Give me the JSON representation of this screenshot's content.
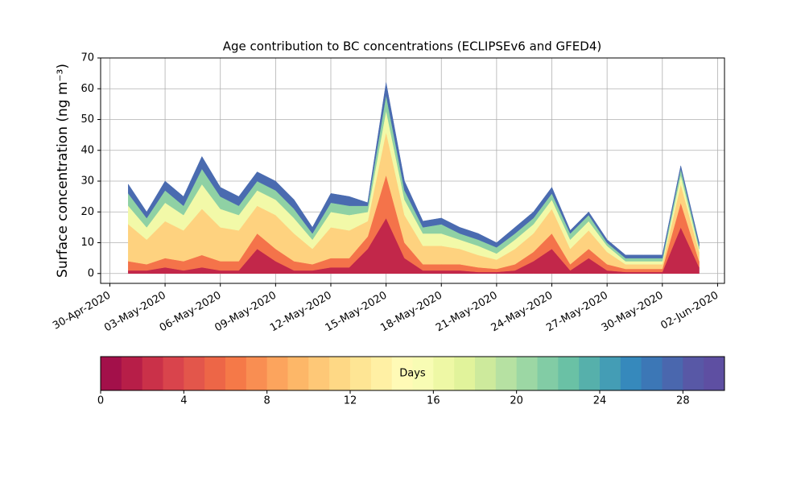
{
  "chart_data": {
    "type": "stacked_area",
    "title": "Age contribution to BC concentrations (ECLIPSEv6 and GFED4)",
    "ylabel": "Surface concentration (ng m⁻³)",
    "x": [
      "2020-05-01",
      "2020-05-02",
      "2020-05-03",
      "2020-05-04",
      "2020-05-05",
      "2020-05-06",
      "2020-05-07",
      "2020-05-08",
      "2020-05-09",
      "2020-05-10",
      "2020-05-11",
      "2020-05-12",
      "2020-05-13",
      "2020-05-14",
      "2020-05-15",
      "2020-05-16",
      "2020-05-17",
      "2020-05-18",
      "2020-05-19",
      "2020-05-20",
      "2020-05-21",
      "2020-05-22",
      "2020-05-23",
      "2020-05-24",
      "2020-05-25",
      "2020-05-26",
      "2020-05-27",
      "2020-05-28",
      "2020-05-29",
      "2020-05-30",
      "2020-05-31",
      "2020-06-01"
    ],
    "series": [
      {
        "color": "#c2274a",
        "values": [
          1,
          1,
          2,
          1,
          2,
          1,
          1,
          8,
          4,
          1,
          1,
          2,
          2,
          8,
          18,
          5,
          1,
          1,
          1,
          0.5,
          0.5,
          1,
          4,
          8,
          1,
          5,
          1,
          0.5,
          0.5,
          0.5,
          15,
          2
        ]
      },
      {
        "color": "#f4734a",
        "values": [
          3,
          2,
          3,
          3,
          4,
          3,
          3,
          5,
          4,
          3,
          2,
          3,
          3,
          4,
          14,
          5,
          2,
          2,
          2,
          1.5,
          1,
          2,
          3,
          5,
          2,
          3,
          2,
          1,
          1,
          1,
          8,
          2
        ]
      },
      {
        "color": "#fed27f",
        "values": [
          12,
          8,
          12,
          10,
          15,
          11,
          10,
          9,
          11,
          9,
          5,
          10,
          9,
          5,
          14,
          9,
          6,
          6,
          5,
          4,
          3,
          5,
          6,
          8,
          5,
          6,
          4,
          1.5,
          1.5,
          1.5,
          6,
          3
        ]
      },
      {
        "color": "#f2f9a8",
        "values": [
          6,
          4,
          6,
          5,
          8,
          6,
          5,
          5,
          5,
          5,
          3,
          5,
          5,
          3,
          7,
          5,
          4,
          4,
          3,
          3,
          2,
          3,
          3,
          3,
          3,
          3,
          2,
          1,
          1,
          1,
          3,
          1
        ]
      },
      {
        "color": "#8fd1a4",
        "values": [
          4,
          3,
          4,
          3,
          5,
          4,
          3,
          3,
          3,
          3,
          2,
          3,
          3,
          2,
          5,
          3,
          2,
          3,
          2,
          2,
          2,
          2,
          2,
          2,
          2,
          2,
          1,
          1,
          1,
          1,
          2,
          1
        ]
      },
      {
        "color": "#4a6bb0",
        "values": [
          3,
          2,
          3,
          3,
          4,
          3,
          3,
          3,
          3,
          3,
          2,
          3,
          3,
          1,
          4,
          3,
          2,
          2,
          2,
          2,
          1.5,
          2,
          2,
          2,
          1,
          1,
          1,
          1,
          1,
          1,
          1,
          1
        ]
      }
    ],
    "xlim": [
      "2020-04-29T12:00",
      "2020-06-02T09:00"
    ],
    "xticks": [
      {
        "value": "2020-04-30",
        "label": "30-Apr-2020"
      },
      {
        "value": "2020-05-03",
        "label": "03-May-2020"
      },
      {
        "value": "2020-05-06",
        "label": "06-May-2020"
      },
      {
        "value": "2020-05-09",
        "label": "09-May-2020"
      },
      {
        "value": "2020-05-12",
        "label": "12-May-2020"
      },
      {
        "value": "2020-05-15",
        "label": "15-May-2020"
      },
      {
        "value": "2020-05-18",
        "label": "18-May-2020"
      },
      {
        "value": "2020-05-21",
        "label": "21-May-2020"
      },
      {
        "value": "2020-05-24",
        "label": "24-May-2020"
      },
      {
        "value": "2020-05-27",
        "label": "27-May-2020"
      },
      {
        "value": "2020-05-30",
        "label": "30-May-2020"
      },
      {
        "value": "2020-06-02",
        "label": "02-Jun-2020"
      }
    ],
    "ylim": [
      -3.2,
      70
    ],
    "yticks": [
      0,
      10,
      20,
      30,
      40,
      50,
      60,
      70
    ],
    "grid": true,
    "colorbar": {
      "label": "Days",
      "lim": [
        0,
        30
      ],
      "ticks": [
        0,
        4,
        8,
        12,
        16,
        20,
        24,
        28
      ],
      "colors": [
        "#a3104a",
        "#b71e48",
        "#ca3149",
        "#d9444c",
        "#e3564b",
        "#ed6647",
        "#f57948",
        "#f98e52",
        "#fca45d",
        "#fdb768",
        "#fec877",
        "#fed885",
        "#fee594",
        "#fff0a4",
        "#fffab6",
        "#f8fcb4",
        "#eef8a5",
        "#e1f39b",
        "#cdea9c",
        "#b6e1a2",
        "#9cd7a4",
        "#82cca5",
        "#6ac1a5",
        "#56b0ab",
        "#449db5",
        "#3689bc",
        "#3c77b6",
        "#4a67ae",
        "#5858a6",
        "#5e4fa2"
      ]
    }
  }
}
